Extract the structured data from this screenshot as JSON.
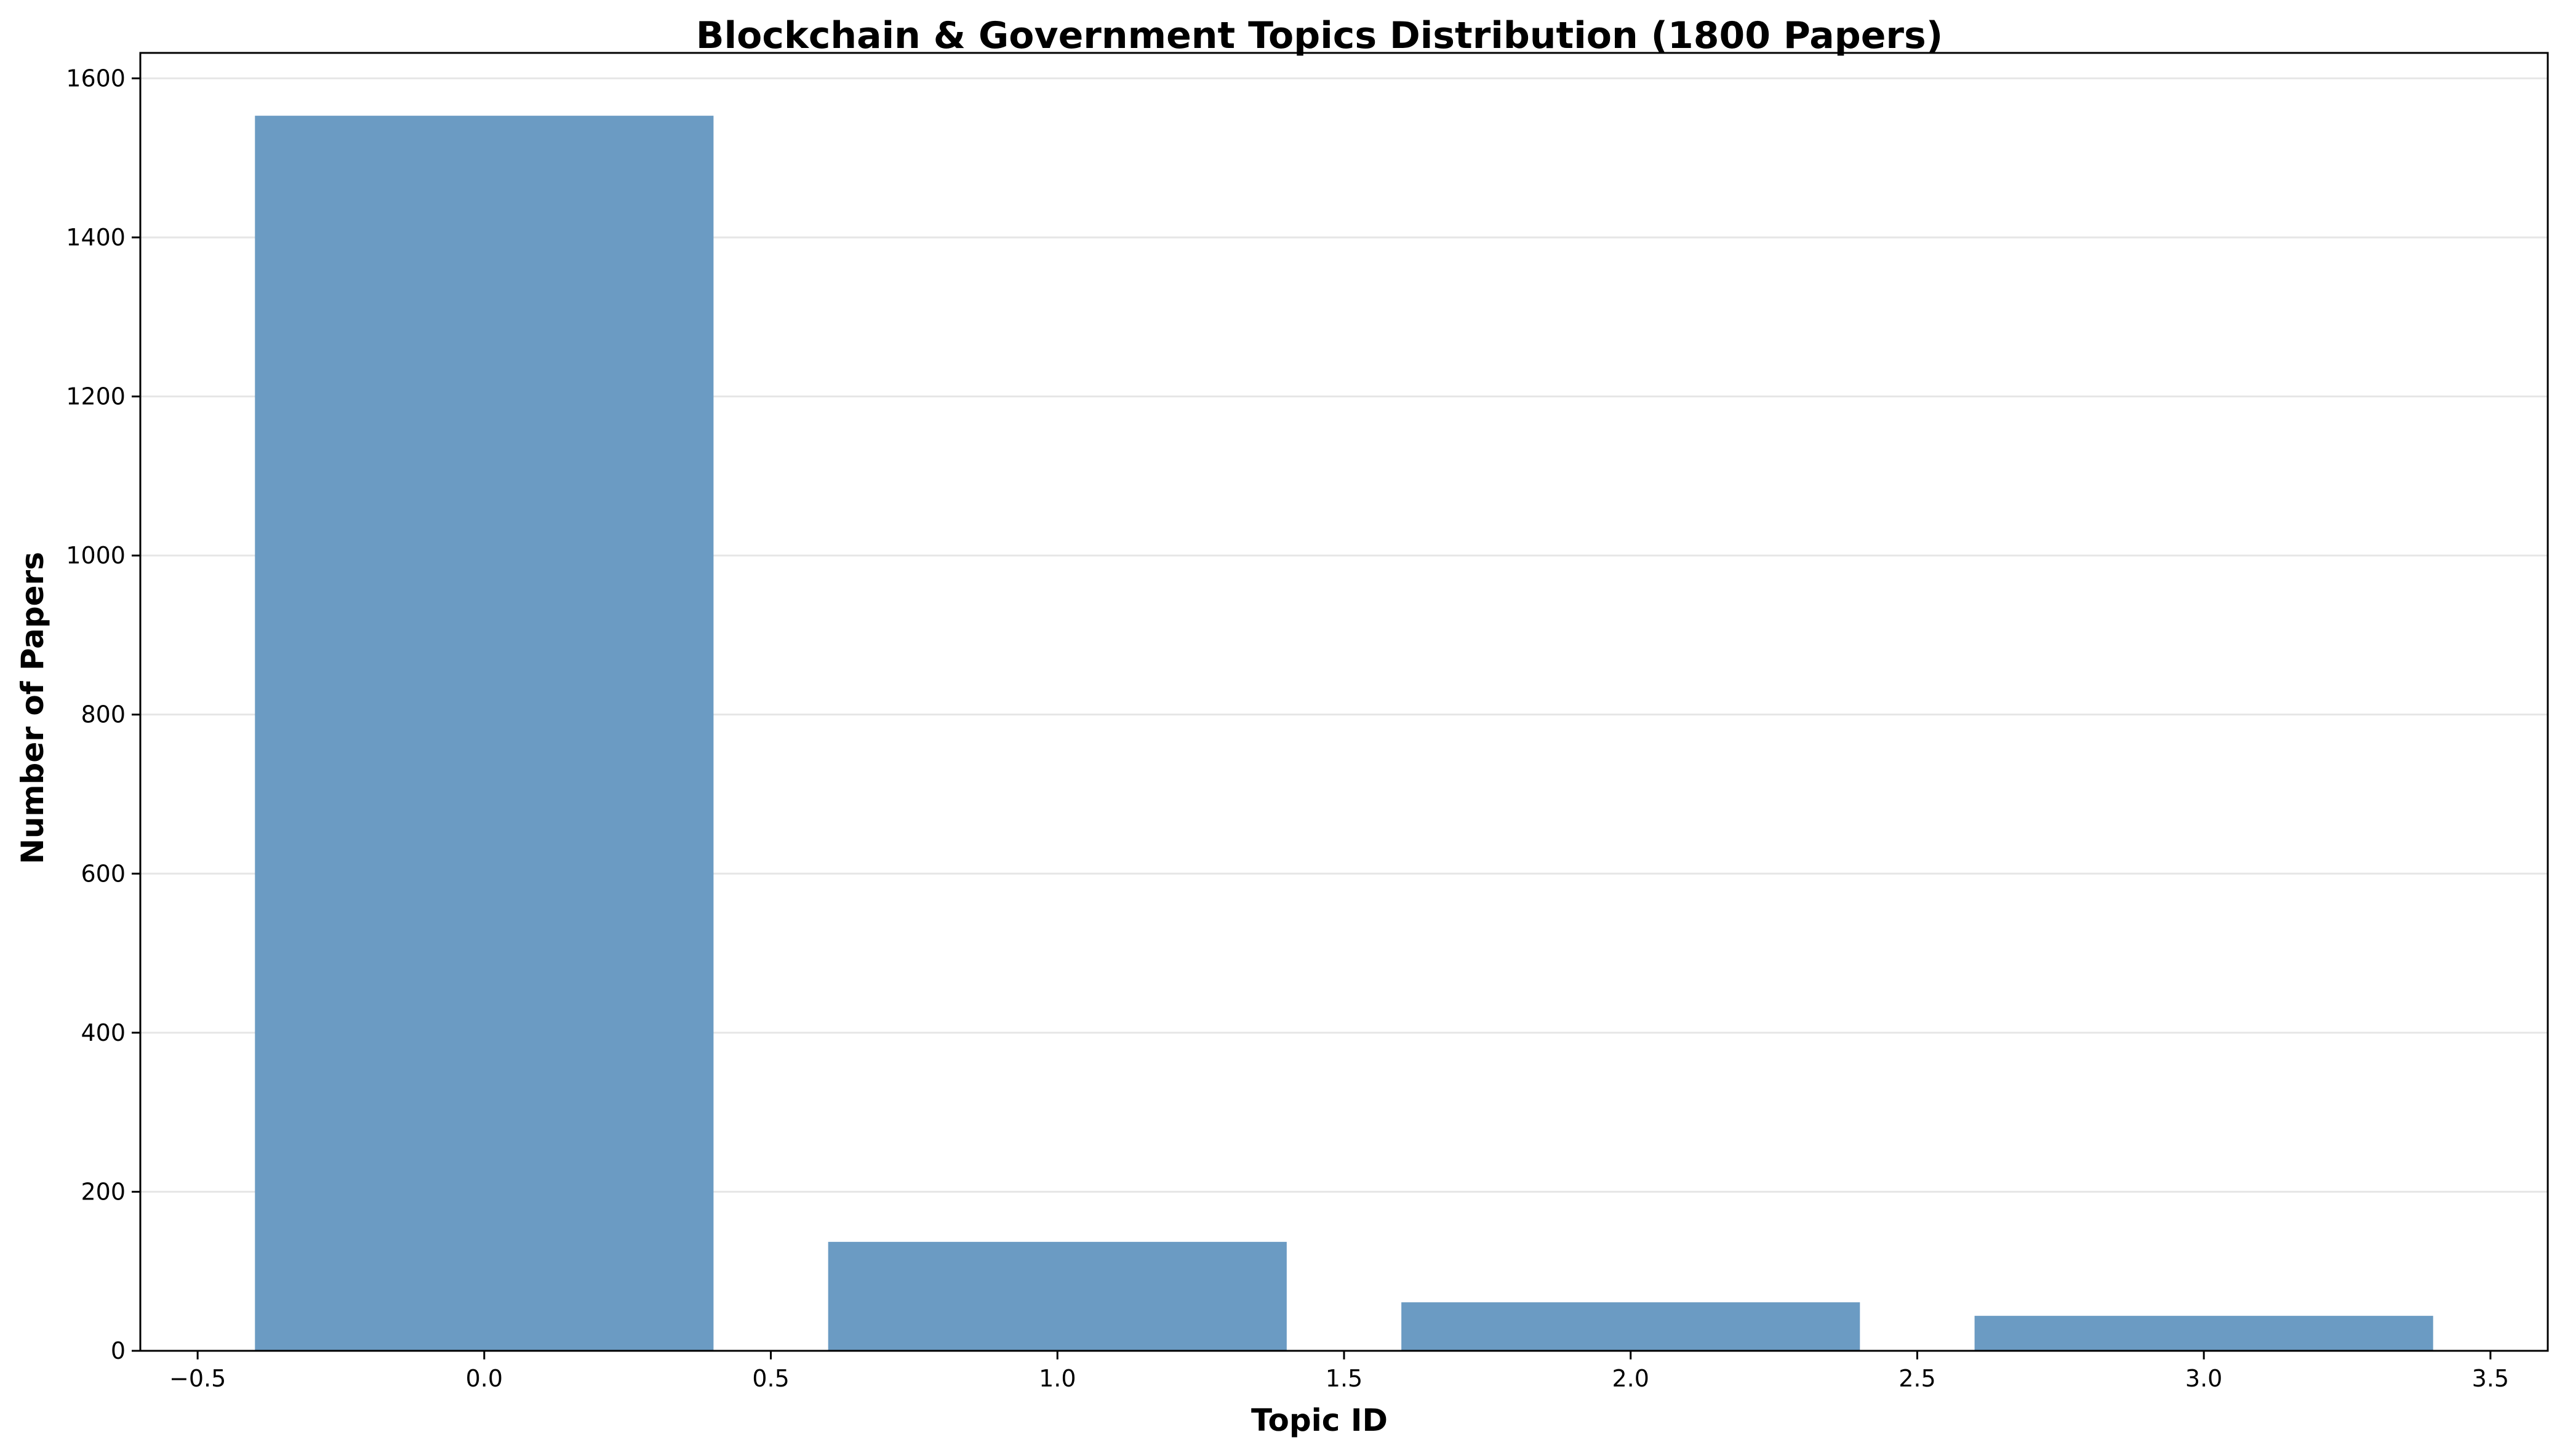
{
  "chart_data": {
    "type": "bar",
    "title": "Blockchain & Government Topics Distribution (1800 Papers)",
    "xlabel": "Topic ID",
    "ylabel": "Number of Papers",
    "x": [
      0,
      1,
      2,
      3
    ],
    "values": [
      1553,
      137,
      61,
      44
    ],
    "bar_width": 0.8,
    "xlim": [
      -0.6,
      3.6
    ],
    "ylim": [
      0,
      1632
    ],
    "x_ticks": [
      -0.5,
      0.0,
      0.5,
      1.0,
      1.5,
      2.0,
      2.5,
      3.0,
      3.5
    ],
    "x_tick_labels": [
      "−0.5",
      "0.0",
      "0.5",
      "1.0",
      "1.5",
      "2.0",
      "2.5",
      "3.0",
      "3.5"
    ],
    "y_ticks": [
      0,
      200,
      400,
      600,
      800,
      1000,
      1200,
      1400,
      1600
    ],
    "y_tick_labels": [
      "0",
      "200",
      "400",
      "600",
      "800",
      "1000",
      "1200",
      "1400",
      "1600"
    ],
    "grid": "y",
    "legend": "none",
    "bar_color": "#6b9bc3",
    "grid_color": "#e6e6e6"
  }
}
